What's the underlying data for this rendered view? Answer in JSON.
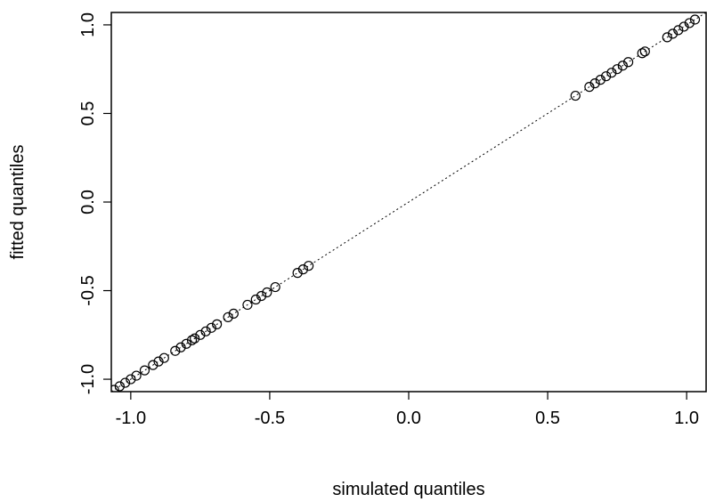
{
  "chart_data": {
    "type": "scatter",
    "title": "",
    "xlabel": "simulated quantiles",
    "ylabel": "fitted quantiles",
    "xlim": [
      -1.07,
      1.07
    ],
    "ylim": [
      -1.07,
      1.07
    ],
    "x_ticks": [
      {
        "value": -1.0,
        "label": "-1.0"
      },
      {
        "value": -0.5,
        "label": "-0.5"
      },
      {
        "value": 0.0,
        "label": "0.0"
      },
      {
        "value": 0.5,
        "label": "0.5"
      },
      {
        "value": 1.0,
        "label": "1.0"
      }
    ],
    "y_ticks": [
      {
        "value": -1.0,
        "label": "-1.0"
      },
      {
        "value": -0.5,
        "label": "-0.5"
      },
      {
        "value": 0.0,
        "label": "0.0"
      },
      {
        "value": 0.5,
        "label": "0.5"
      },
      {
        "value": 1.0,
        "label": "1.0"
      }
    ],
    "grid": false,
    "reference_line": {
      "from": [
        -1.07,
        -1.07
      ],
      "to": [
        1.07,
        1.07
      ],
      "style": "dotted"
    },
    "series": [
      {
        "marker": "open-circle",
        "color": "#000000",
        "points": [
          [
            -1.06,
            -1.06
          ],
          [
            -1.04,
            -1.04
          ],
          [
            -1.02,
            -1.02
          ],
          [
            -1.0,
            -1.0
          ],
          [
            -0.98,
            -0.98
          ],
          [
            -0.95,
            -0.95
          ],
          [
            -0.92,
            -0.92
          ],
          [
            -0.9,
            -0.9
          ],
          [
            -0.88,
            -0.88
          ],
          [
            -0.84,
            -0.84
          ],
          [
            -0.82,
            -0.82
          ],
          [
            -0.8,
            -0.8
          ],
          [
            -0.78,
            -0.78
          ],
          [
            -0.77,
            -0.77
          ],
          [
            -0.75,
            -0.75
          ],
          [
            -0.73,
            -0.73
          ],
          [
            -0.71,
            -0.71
          ],
          [
            -0.69,
            -0.69
          ],
          [
            -0.65,
            -0.65
          ],
          [
            -0.63,
            -0.63
          ],
          [
            -0.58,
            -0.58
          ],
          [
            -0.55,
            -0.55
          ],
          [
            -0.53,
            -0.53
          ],
          [
            -0.51,
            -0.51
          ],
          [
            -0.48,
            -0.48
          ],
          [
            -0.4,
            -0.4
          ],
          [
            -0.38,
            -0.38
          ],
          [
            -0.36,
            -0.36
          ],
          [
            0.6,
            0.6
          ],
          [
            0.65,
            0.65
          ],
          [
            0.67,
            0.67
          ],
          [
            0.69,
            0.69
          ],
          [
            0.71,
            0.71
          ],
          [
            0.73,
            0.73
          ],
          [
            0.75,
            0.75
          ],
          [
            0.77,
            0.77
          ],
          [
            0.79,
            0.79
          ],
          [
            0.84,
            0.84
          ],
          [
            0.85,
            0.85
          ],
          [
            0.93,
            0.93
          ],
          [
            0.95,
            0.95
          ],
          [
            0.97,
            0.97
          ],
          [
            0.99,
            0.99
          ],
          [
            1.01,
            1.01
          ],
          [
            1.03,
            1.03
          ]
        ]
      }
    ]
  }
}
